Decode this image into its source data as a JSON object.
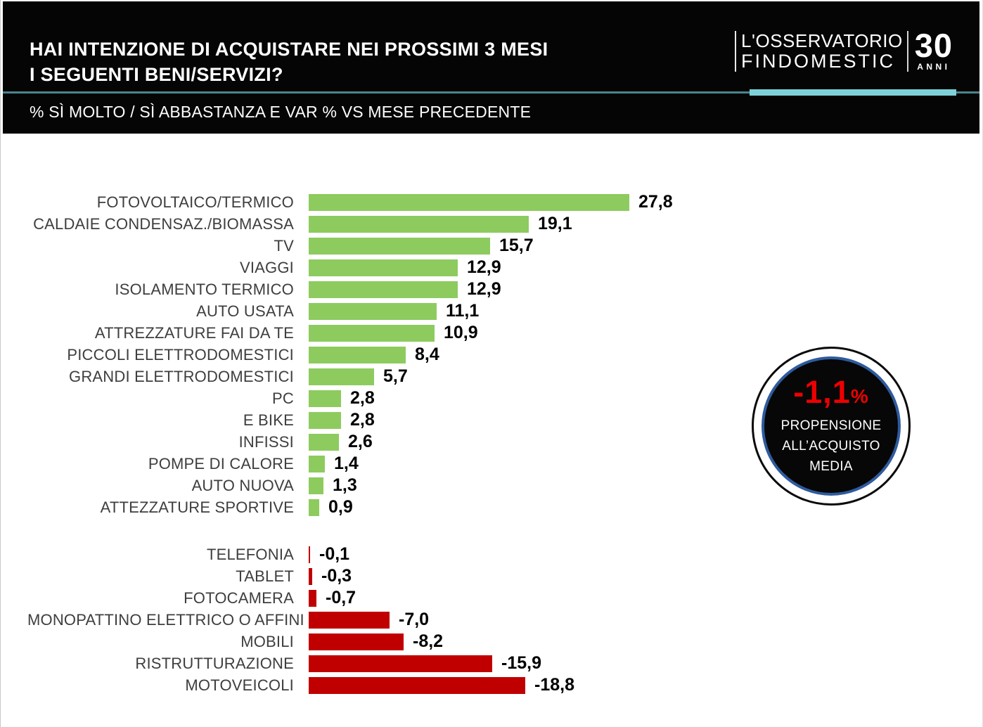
{
  "header": {
    "title_line1": "HAI INTENZIONE DI ACQUISTARE NEI PROSSIMI 3 MESI",
    "title_line2": "I SEGUENTI BENI/SERVIZI?",
    "subtitle": "% SÌ MOLTO / SÌ ABBASTANZA E VAR % VS MESE PRECEDENTE",
    "logo": {
      "line1": "L'OSSERVATORIO",
      "line2": "FINDOMESTIC",
      "years_number": "30",
      "years_label": "ANNI"
    }
  },
  "badge": {
    "value": "-1,1",
    "percent_sign": "%",
    "label_lines": [
      "PROPENSIONE",
      "ALL’ACQUISTO",
      "MEDIA"
    ]
  },
  "colors": {
    "header_bg": "#050505",
    "positive_bar": "#8DCB5E",
    "negative_bar": "#C00000",
    "teal_line_thin": "#47858D",
    "teal_line_thick": "#7ED1D8",
    "badge_value_red": "#EE0000",
    "badge_ring_blue": "#2F5B9E",
    "label_text": "#3E3E3E"
  },
  "chart_data": {
    "type": "bar",
    "orientation": "horizontal",
    "title": "HAI INTENZIONE DI ACQUISTARE NEI PROSSIMI 3 MESI I SEGUENTI BENI/SERVIZI?",
    "subtitle": "% SÌ MOLTO / SÌ ABBASTANZA E VAR % VS MESE PRECEDENTE",
    "xlabel": "",
    "ylabel": "",
    "xlim": [
      -18.8,
      27.8
    ],
    "grid": false,
    "legend": false,
    "categories": [
      "FOTOVOLTAICO/TERMICO",
      "CALDAIE CONDENSAZ./BIOMASSA",
      "TV",
      "VIAGGI",
      "ISOLAMENTO TERMICO",
      "AUTO USATA",
      "ATTREZZATURE FAI DA TE",
      "PICCOLI ELETTRODOMESTICI",
      "GRANDI ELETTRODOMESTICI",
      "PC",
      "E BIKE",
      "INFISSI",
      "POMPE DI CALORE",
      "AUTO NUOVA",
      "ATTEZZATURE SPORTIVE",
      "TELEFONIA",
      "TABLET",
      "FOTOCAMERA",
      "MONOPATTINO ELETTRICO O AFFINI",
      "MOBILI",
      "RISTRUTTURAZIONE",
      "MOTOVEICOLI"
    ],
    "values": [
      27.8,
      19.1,
      15.7,
      12.9,
      12.9,
      11.1,
      10.9,
      8.4,
      5.7,
      2.8,
      2.8,
      2.6,
      1.4,
      1.3,
      0.9,
      -0.1,
      -0.3,
      -0.7,
      -7.0,
      -8.2,
      -15.9,
      -18.8
    ],
    "display_values": [
      "27,8",
      "19,1",
      "15,7",
      "12,9",
      "12,9",
      "11,1",
      "10,9",
      "8,4",
      "5,7",
      "2,8",
      "2,8",
      "2,6",
      "1,4",
      "1,3",
      "0,9",
      "-0,1",
      "-0,3",
      "-0,7",
      "-7,0",
      "-8,2",
      "-15,9",
      "-18,8"
    ]
  }
}
